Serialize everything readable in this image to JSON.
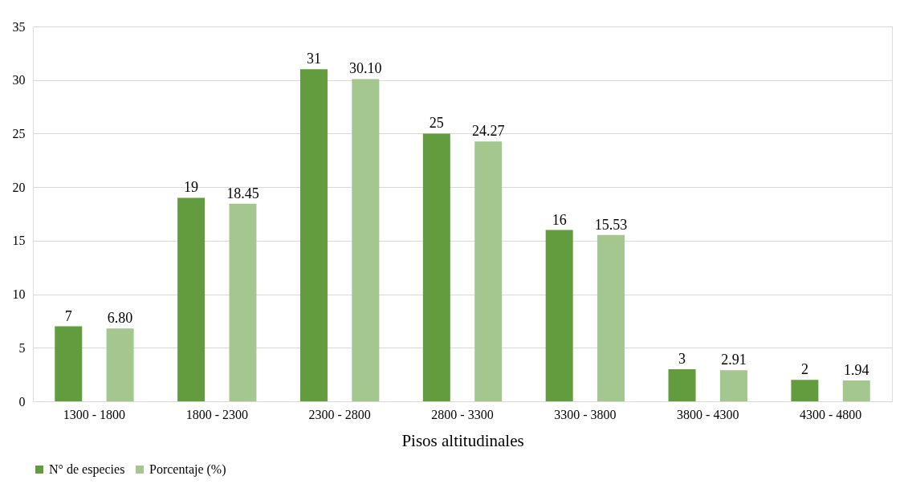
{
  "chart_data": {
    "type": "bar",
    "categories": [
      "1300 - 1800",
      "1800 - 2300",
      "2300 - 2800",
      "2800 - 3300",
      "3300 - 3800",
      "3800 - 4300",
      "4300  - 4800"
    ],
    "series": [
      {
        "name": "N° de especies",
        "color": "#629c3f",
        "values": [
          7,
          19,
          31,
          25,
          16,
          3,
          2
        ],
        "value_labels": [
          "7",
          "19",
          "31",
          "25",
          "16",
          "3",
          "2"
        ]
      },
      {
        "name": "Porcentaje (%)",
        "color": "#a3c78e",
        "values": [
          6.8,
          18.45,
          30.1,
          24.27,
          15.53,
          2.91,
          1.94
        ],
        "value_labels": [
          "6.80",
          "18.45",
          "30.10",
          "24.27",
          "15.53",
          "2.91",
          "1.94"
        ]
      }
    ],
    "xlabel": "Pisos altitudinales",
    "ylim": [
      0,
      35
    ],
    "yticks": [
      0,
      5,
      10,
      15,
      20,
      25,
      30,
      35
    ],
    "grid": "y",
    "legend": "bottom"
  }
}
